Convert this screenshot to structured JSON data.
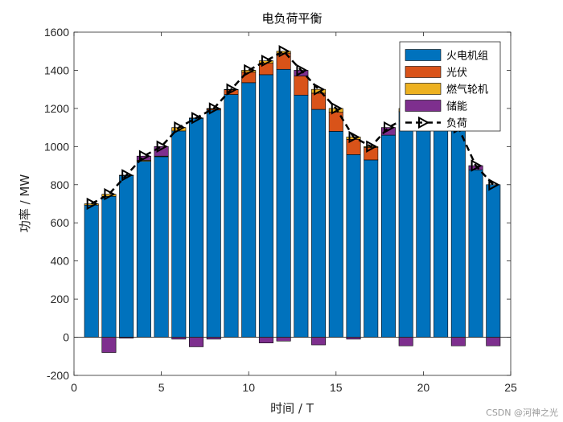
{
  "chart_data": {
    "type": "bar",
    "stacked": true,
    "title": "电负荷平衡",
    "xlabel": "时间 / T",
    "ylabel": "功率 / MW",
    "xlim": [
      0,
      25
    ],
    "ylim": [
      -200,
      1600
    ],
    "xticks": [
      0,
      5,
      10,
      15,
      20,
      25
    ],
    "yticks": [
      -200,
      0,
      200,
      400,
      600,
      800,
      1000,
      1200,
      1400,
      1600
    ],
    "x": [
      1,
      2,
      3,
      4,
      5,
      6,
      7,
      8,
      9,
      10,
      11,
      12,
      13,
      14,
      15,
      16,
      17,
      18,
      19,
      20,
      21,
      22,
      23,
      24
    ],
    "series": [
      {
        "name": "火电机组",
        "color": "#0072BD",
        "values": [
          693,
          739,
          848,
          923,
          947,
          1082,
          1148,
          1192,
          1273,
          1335,
          1377,
          1405,
          1270,
          1195,
          1080,
          958,
          930,
          1060,
          1183,
          1150,
          1100,
          1095,
          878,
          800
        ]
      },
      {
        "name": "光伏",
        "color": "#D95319",
        "values": [
          0,
          0,
          0,
          0,
          0,
          0,
          0,
          5,
          25,
          55,
          60,
          85,
          100,
          85,
          100,
          80,
          65,
          0,
          0,
          0,
          0,
          0,
          0,
          0
        ]
      },
      {
        "name": "燃气轮机",
        "color": "#EDB120",
        "values": [
          7,
          11,
          2,
          5,
          3,
          18,
          2,
          3,
          2,
          10,
          13,
          10,
          0,
          20,
          20,
          12,
          5,
          0,
          17,
          0,
          0,
          5,
          0,
          0
        ]
      },
      {
        "name": "储能",
        "color": "#7E2F8E",
        "values": [
          0,
          -80,
          -5,
          22,
          50,
          -10,
          -50,
          -10,
          0,
          0,
          -30,
          -20,
          30,
          -40,
          0,
          -10,
          0,
          40,
          -45,
          30,
          20,
          -45,
          22,
          -45
        ]
      }
    ],
    "load": {
      "name": "负荷",
      "color": "#000000",
      "values": [
        700,
        750,
        850,
        950,
        1000,
        1100,
        1150,
        1200,
        1300,
        1400,
        1450,
        1500,
        1400,
        1300,
        1200,
        1050,
        1000,
        1100,
        1150,
        1180,
        1120,
        1100,
        900,
        800
      ]
    },
    "legend_position": "top-right",
    "grid": false
  },
  "watermark": "CSDN @河神之光"
}
